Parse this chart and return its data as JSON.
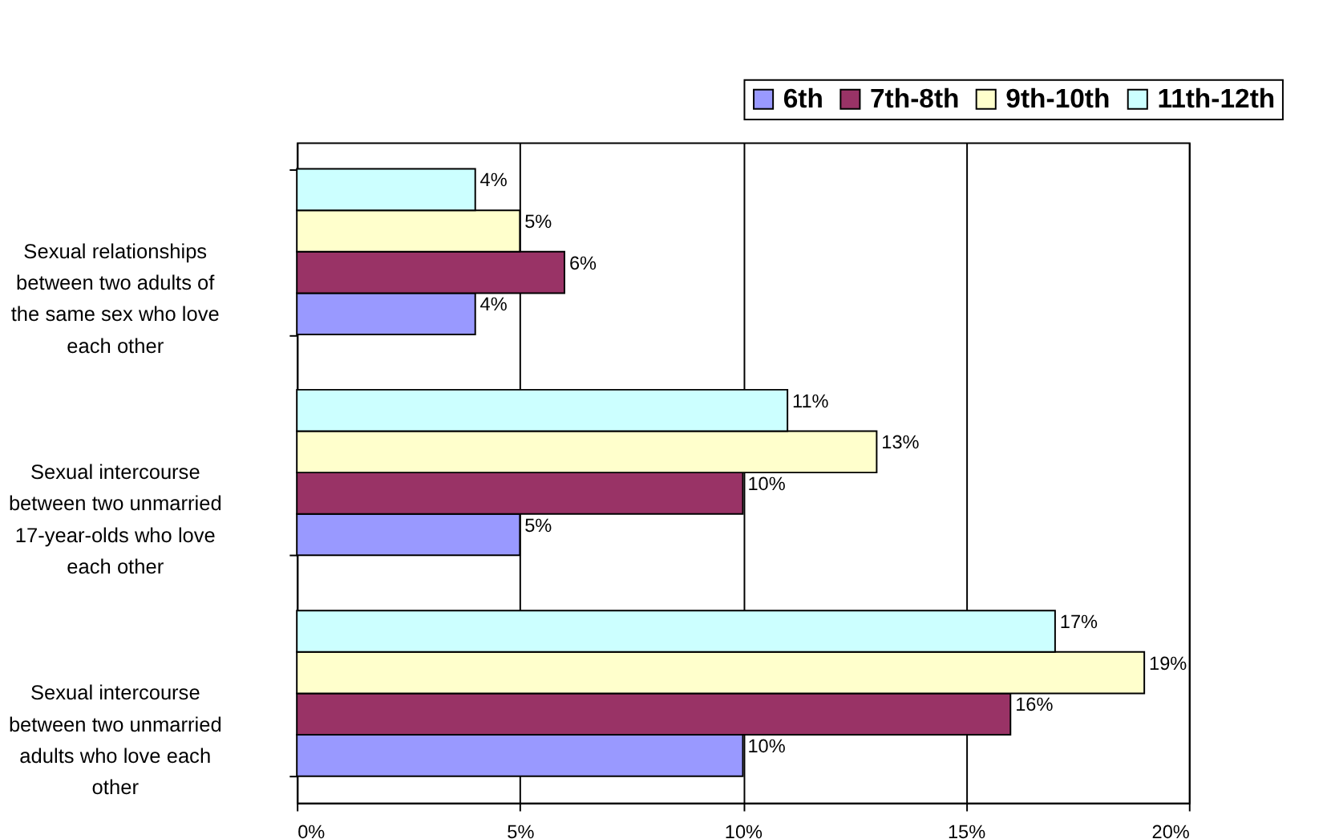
{
  "chart_data": {
    "type": "bar",
    "orientation": "horizontal",
    "categories": [
      "Sexual relationships between two adults of the same sex who love each other",
      "Sexual intercourse between two unmarried 17-year-olds who love each other",
      "Sexual intercourse between two unmarried adults who love each other"
    ],
    "series": [
      {
        "name": "6th",
        "color": "#9999ff",
        "values": [
          4,
          5,
          10
        ],
        "value_labels": [
          "4%",
          "5%",
          "10%"
        ]
      },
      {
        "name": "7th-8th",
        "color": "#993366",
        "values": [
          6,
          10,
          16
        ],
        "value_labels": [
          "6%",
          "10%",
          "16%"
        ]
      },
      {
        "name": "9th-10th",
        "color": "#ffffcc",
        "values": [
          5,
          13,
          19
        ],
        "value_labels": [
          "5%",
          "13%",
          "19%"
        ]
      },
      {
        "name": "11th-12th",
        "color": "#ccffff",
        "values": [
          4,
          11,
          17
        ],
        "value_labels": [
          "4%",
          "11%",
          "17%"
        ]
      }
    ],
    "xlim": [
      0,
      20
    ],
    "xticks": [
      {
        "value": 0,
        "label": "0%"
      },
      {
        "value": 5,
        "label": "5%"
      },
      {
        "value": 10,
        "label": "10%"
      },
      {
        "value": 15,
        "label": "15%"
      },
      {
        "value": 20,
        "label": "20%"
      }
    ],
    "grid": "x",
    "legend": "top right"
  }
}
